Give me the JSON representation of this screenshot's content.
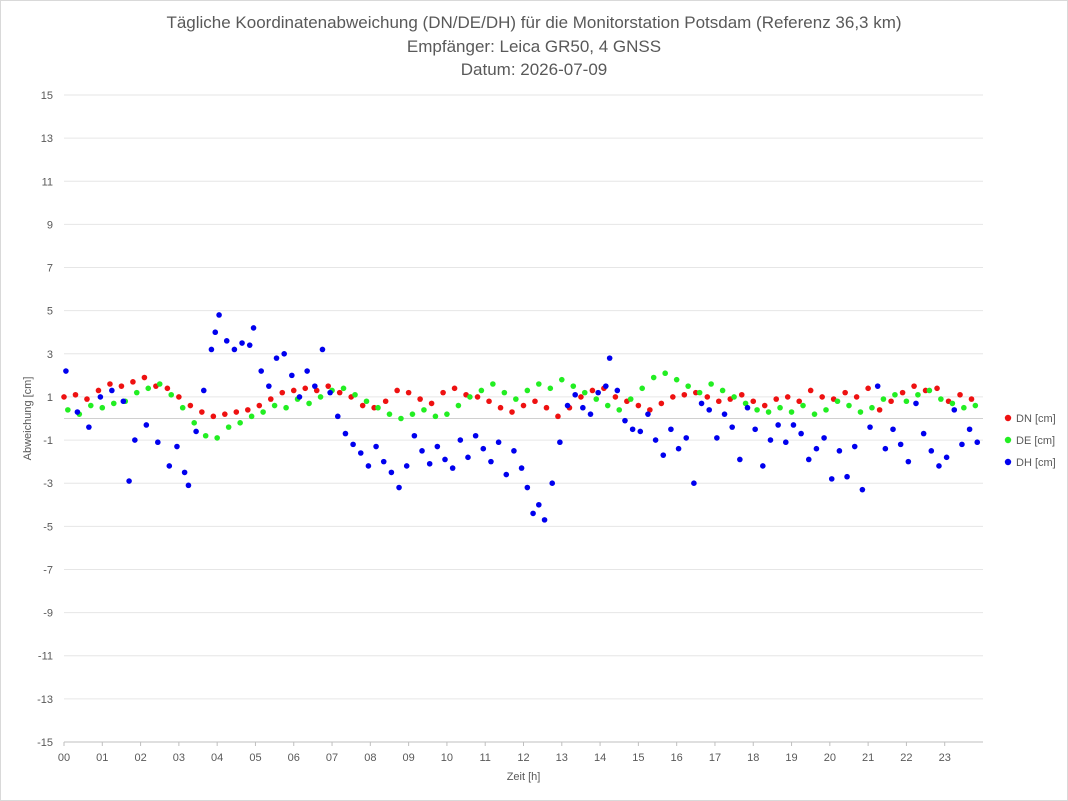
{
  "chart_data": {
    "type": "scatter",
    "title_lines": [
      "Tägliche Koordinatenabweichung (DN/DE/DH) für die Monitorstation Potsdam (Referenz 36,3 km)",
      "Empfänger: Leica GR50, 4 GNSS",
      "Datum: 2026-07-09"
    ],
    "xlabel": "Zeit [h]",
    "ylabel": "Abweichung [cm]",
    "xlim": [
      0,
      24
    ],
    "ylim": [
      -15,
      15
    ],
    "x_ticks": [
      "00",
      "01",
      "02",
      "03",
      "04",
      "05",
      "06",
      "07",
      "08",
      "09",
      "10",
      "11",
      "12",
      "13",
      "14",
      "15",
      "16",
      "17",
      "18",
      "19",
      "20",
      "21",
      "22",
      "23"
    ],
    "y_ticks": [
      15,
      13,
      11,
      9,
      7,
      5,
      3,
      1,
      -1,
      -3,
      -5,
      -7,
      -9,
      -11,
      -13,
      -15
    ],
    "grid": true,
    "legend_position": "right",
    "series": [
      {
        "name": "DN [cm]",
        "color": "#ee1111",
        "points": [
          [
            0.0,
            1.0
          ],
          [
            0.3,
            1.1
          ],
          [
            0.6,
            0.9
          ],
          [
            0.9,
            1.3
          ],
          [
            1.2,
            1.6
          ],
          [
            1.5,
            1.5
          ],
          [
            1.8,
            1.7
          ],
          [
            2.1,
            1.9
          ],
          [
            2.4,
            1.5
          ],
          [
            2.7,
            1.4
          ],
          [
            3.0,
            1.0
          ],
          [
            3.3,
            0.6
          ],
          [
            3.6,
            0.3
          ],
          [
            3.9,
            0.1
          ],
          [
            4.2,
            0.2
          ],
          [
            4.5,
            0.3
          ],
          [
            4.8,
            0.4
          ],
          [
            5.1,
            0.6
          ],
          [
            5.4,
            0.9
          ],
          [
            5.7,
            1.2
          ],
          [
            6.0,
            1.3
          ],
          [
            6.3,
            1.4
          ],
          [
            6.6,
            1.3
          ],
          [
            6.9,
            1.5
          ],
          [
            7.2,
            1.2
          ],
          [
            7.5,
            1.0
          ],
          [
            7.8,
            0.6
          ],
          [
            8.1,
            0.5
          ],
          [
            8.4,
            0.8
          ],
          [
            8.7,
            1.3
          ],
          [
            9.0,
            1.2
          ],
          [
            9.3,
            0.9
          ],
          [
            9.6,
            0.7
          ],
          [
            9.9,
            1.2
          ],
          [
            10.2,
            1.4
          ],
          [
            10.5,
            1.1
          ],
          [
            10.8,
            1.0
          ],
          [
            11.1,
            0.8
          ],
          [
            11.4,
            0.5
          ],
          [
            11.7,
            0.3
          ],
          [
            12.0,
            0.6
          ],
          [
            12.3,
            0.8
          ],
          [
            12.6,
            0.5
          ],
          [
            12.9,
            0.1
          ],
          [
            13.2,
            0.5
          ],
          [
            13.5,
            1.0
          ],
          [
            13.8,
            1.3
          ],
          [
            14.1,
            1.4
          ],
          [
            14.4,
            1.0
          ],
          [
            14.7,
            0.8
          ],
          [
            15.0,
            0.6
          ],
          [
            15.3,
            0.4
          ],
          [
            15.6,
            0.7
          ],
          [
            15.9,
            1.0
          ],
          [
            16.2,
            1.1
          ],
          [
            16.5,
            1.2
          ],
          [
            16.8,
            1.0
          ],
          [
            17.1,
            0.8
          ],
          [
            17.4,
            0.9
          ],
          [
            17.7,
            1.1
          ],
          [
            18.0,
            0.8
          ],
          [
            18.3,
            0.6
          ],
          [
            18.6,
            0.9
          ],
          [
            18.9,
            1.0
          ],
          [
            19.2,
            0.8
          ],
          [
            19.5,
            1.3
          ],
          [
            19.8,
            1.0
          ],
          [
            20.1,
            0.9
          ],
          [
            20.4,
            1.2
          ],
          [
            20.7,
            1.0
          ],
          [
            21.0,
            1.4
          ],
          [
            21.3,
            0.4
          ],
          [
            21.6,
            0.8
          ],
          [
            21.9,
            1.2
          ],
          [
            22.2,
            1.5
          ],
          [
            22.5,
            1.3
          ],
          [
            22.8,
            1.4
          ],
          [
            23.1,
            0.8
          ],
          [
            23.4,
            1.1
          ],
          [
            23.7,
            0.9
          ]
        ]
      },
      {
        "name": "DE [cm]",
        "color": "#22ee22",
        "points": [
          [
            0.1,
            0.4
          ],
          [
            0.4,
            0.2
          ],
          [
            0.7,
            0.6
          ],
          [
            1.0,
            0.5
          ],
          [
            1.3,
            0.7
          ],
          [
            1.6,
            0.8
          ],
          [
            1.9,
            1.2
          ],
          [
            2.2,
            1.4
          ],
          [
            2.5,
            1.6
          ],
          [
            2.8,
            1.1
          ],
          [
            3.1,
            0.5
          ],
          [
            3.4,
            -0.2
          ],
          [
            3.7,
            -0.8
          ],
          [
            4.0,
            -0.9
          ],
          [
            4.3,
            -0.4
          ],
          [
            4.6,
            -0.2
          ],
          [
            4.9,
            0.1
          ],
          [
            5.2,
            0.3
          ],
          [
            5.5,
            0.6
          ],
          [
            5.8,
            0.5
          ],
          [
            6.1,
            0.9
          ],
          [
            6.4,
            0.7
          ],
          [
            6.7,
            1.0
          ],
          [
            7.0,
            1.3
          ],
          [
            7.3,
            1.4
          ],
          [
            7.6,
            1.1
          ],
          [
            7.9,
            0.8
          ],
          [
            8.2,
            0.5
          ],
          [
            8.5,
            0.2
          ],
          [
            8.8,
            0.0
          ],
          [
            9.1,
            0.2
          ],
          [
            9.4,
            0.4
          ],
          [
            9.7,
            0.1
          ],
          [
            10.0,
            0.2
          ],
          [
            10.3,
            0.6
          ],
          [
            10.6,
            1.0
          ],
          [
            10.9,
            1.3
          ],
          [
            11.2,
            1.6
          ],
          [
            11.5,
            1.2
          ],
          [
            11.8,
            0.9
          ],
          [
            12.1,
            1.3
          ],
          [
            12.4,
            1.6
          ],
          [
            12.7,
            1.4
          ],
          [
            13.0,
            1.8
          ],
          [
            13.3,
            1.5
          ],
          [
            13.6,
            1.2
          ],
          [
            13.9,
            0.9
          ],
          [
            14.2,
            0.6
          ],
          [
            14.5,
            0.4
          ],
          [
            14.8,
            0.9
          ],
          [
            15.1,
            1.4
          ],
          [
            15.4,
            1.9
          ],
          [
            15.7,
            2.1
          ],
          [
            16.0,
            1.8
          ],
          [
            16.3,
            1.5
          ],
          [
            16.6,
            1.2
          ],
          [
            16.9,
            1.6
          ],
          [
            17.2,
            1.3
          ],
          [
            17.5,
            1.0
          ],
          [
            17.8,
            0.7
          ],
          [
            18.1,
            0.4
          ],
          [
            18.4,
            0.3
          ],
          [
            18.7,
            0.5
          ],
          [
            19.0,
            0.3
          ],
          [
            19.3,
            0.6
          ],
          [
            19.6,
            0.2
          ],
          [
            19.9,
            0.4
          ],
          [
            20.2,
            0.8
          ],
          [
            20.5,
            0.6
          ],
          [
            20.8,
            0.3
          ],
          [
            21.1,
            0.5
          ],
          [
            21.4,
            0.9
          ],
          [
            21.7,
            1.1
          ],
          [
            22.0,
            0.8
          ],
          [
            22.3,
            1.1
          ],
          [
            22.6,
            1.3
          ],
          [
            22.9,
            0.9
          ],
          [
            23.2,
            0.7
          ],
          [
            23.5,
            0.5
          ],
          [
            23.8,
            0.6
          ]
        ]
      },
      {
        "name": "DH [cm]",
        "color": "#0000ee",
        "points": [
          [
            0.05,
            2.2
          ],
          [
            0.35,
            0.3
          ],
          [
            0.65,
            -0.4
          ],
          [
            0.95,
            1.0
          ],
          [
            1.25,
            1.3
          ],
          [
            1.55,
            0.8
          ],
          [
            1.7,
            -2.9
          ],
          [
            1.85,
            -1.0
          ],
          [
            2.15,
            -0.3
          ],
          [
            2.45,
            -1.1
          ],
          [
            2.75,
            -2.2
          ],
          [
            2.95,
            -1.3
          ],
          [
            3.15,
            -2.5
          ],
          [
            3.25,
            -3.1
          ],
          [
            3.45,
            -0.6
          ],
          [
            3.65,
            1.3
          ],
          [
            3.85,
            3.2
          ],
          [
            3.95,
            4.0
          ],
          [
            4.05,
            4.8
          ],
          [
            4.25,
            3.6
          ],
          [
            4.45,
            3.2
          ],
          [
            4.65,
            3.5
          ],
          [
            4.85,
            3.4
          ],
          [
            4.95,
            4.2
          ],
          [
            5.15,
            2.2
          ],
          [
            5.35,
            1.5
          ],
          [
            5.55,
            2.8
          ],
          [
            5.75,
            3.0
          ],
          [
            5.95,
            2.0
          ],
          [
            6.15,
            1.0
          ],
          [
            6.35,
            2.2
          ],
          [
            6.55,
            1.5
          ],
          [
            6.75,
            3.2
          ],
          [
            6.95,
            1.2
          ],
          [
            7.15,
            0.1
          ],
          [
            7.35,
            -0.7
          ],
          [
            7.55,
            -1.2
          ],
          [
            7.75,
            -1.6
          ],
          [
            7.95,
            -2.2
          ],
          [
            8.15,
            -1.3
          ],
          [
            8.35,
            -2.0
          ],
          [
            8.55,
            -2.5
          ],
          [
            8.75,
            -3.2
          ],
          [
            8.95,
            -2.2
          ],
          [
            9.15,
            -0.8
          ],
          [
            9.35,
            -1.5
          ],
          [
            9.55,
            -2.1
          ],
          [
            9.75,
            -1.3
          ],
          [
            9.95,
            -1.9
          ],
          [
            10.15,
            -2.3
          ],
          [
            10.35,
            -1.0
          ],
          [
            10.55,
            -1.8
          ],
          [
            10.75,
            -0.8
          ],
          [
            10.95,
            -1.4
          ],
          [
            11.15,
            -2.0
          ],
          [
            11.35,
            -1.1
          ],
          [
            11.55,
            -2.6
          ],
          [
            11.75,
            -1.5
          ],
          [
            11.95,
            -2.3
          ],
          [
            12.1,
            -3.2
          ],
          [
            12.25,
            -4.4
          ],
          [
            12.4,
            -4.0
          ],
          [
            12.55,
            -4.7
          ],
          [
            12.75,
            -3.0
          ],
          [
            12.95,
            -1.1
          ],
          [
            13.15,
            0.6
          ],
          [
            13.35,
            1.1
          ],
          [
            13.55,
            0.5
          ],
          [
            13.75,
            0.2
          ],
          [
            13.95,
            1.2
          ],
          [
            14.15,
            1.5
          ],
          [
            14.25,
            2.8
          ],
          [
            14.45,
            1.3
          ],
          [
            14.65,
            -0.1
          ],
          [
            14.85,
            -0.5
          ],
          [
            15.05,
            -0.6
          ],
          [
            15.25,
            0.2
          ],
          [
            15.45,
            -1.0
          ],
          [
            15.65,
            -1.7
          ],
          [
            15.85,
            -0.5
          ],
          [
            16.05,
            -1.4
          ],
          [
            16.25,
            -0.9
          ],
          [
            16.45,
            -3.0
          ],
          [
            16.65,
            0.7
          ],
          [
            16.85,
            0.4
          ],
          [
            17.05,
            -0.9
          ],
          [
            17.25,
            0.2
          ],
          [
            17.45,
            -0.4
          ],
          [
            17.65,
            -1.9
          ],
          [
            17.85,
            0.5
          ],
          [
            18.05,
            -0.5
          ],
          [
            18.25,
            -2.2
          ],
          [
            18.45,
            -1.0
          ],
          [
            18.65,
            -0.3
          ],
          [
            18.85,
            -1.1
          ],
          [
            19.05,
            -0.3
          ],
          [
            19.25,
            -0.7
          ],
          [
            19.45,
            -1.9
          ],
          [
            19.65,
            -1.4
          ],
          [
            19.85,
            -0.9
          ],
          [
            20.05,
            -2.8
          ],
          [
            20.25,
            -1.5
          ],
          [
            20.45,
            -2.7
          ],
          [
            20.65,
            -1.3
          ],
          [
            20.85,
            -3.3
          ],
          [
            21.05,
            -0.4
          ],
          [
            21.25,
            1.5
          ],
          [
            21.45,
            -1.4
          ],
          [
            21.65,
            -0.5
          ],
          [
            21.85,
            -1.2
          ],
          [
            22.05,
            -2.0
          ],
          [
            22.25,
            0.7
          ],
          [
            22.45,
            -0.7
          ],
          [
            22.65,
            -1.5
          ],
          [
            22.85,
            -2.2
          ],
          [
            23.05,
            -1.8
          ],
          [
            23.25,
            0.4
          ],
          [
            23.45,
            -1.2
          ],
          [
            23.65,
            -0.5
          ],
          [
            23.85,
            -1.1
          ]
        ]
      }
    ]
  }
}
